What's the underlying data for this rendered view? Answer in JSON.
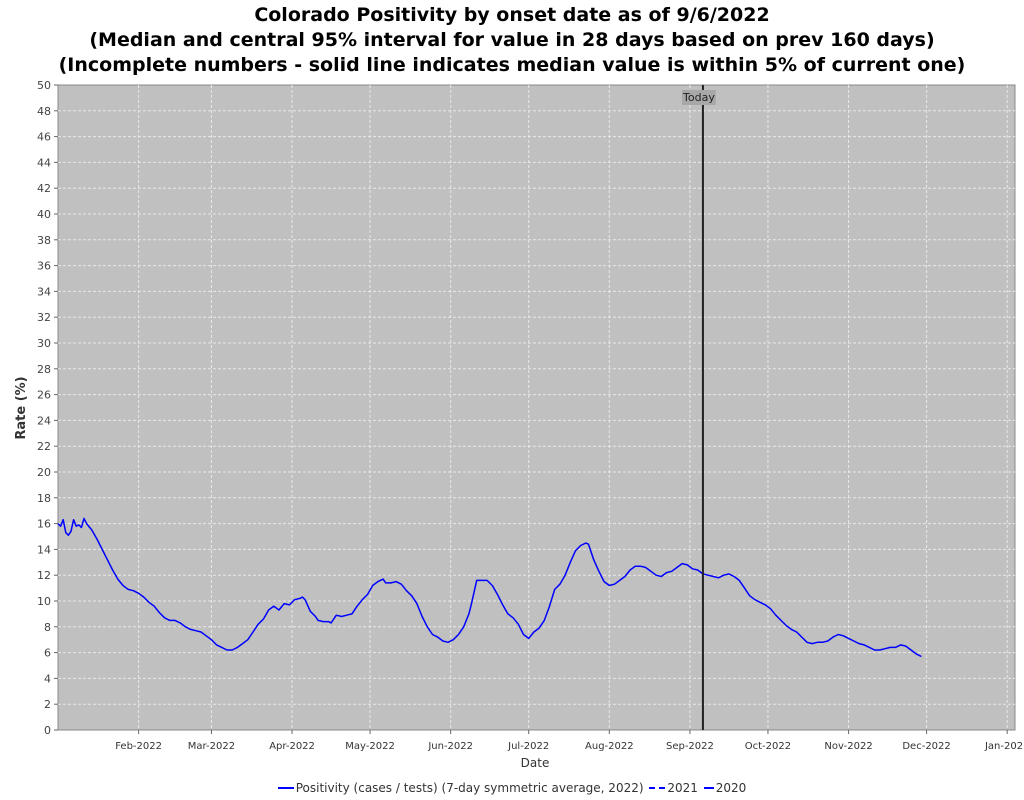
{
  "chart_data": {
    "type": "line",
    "title": "Colorado Positivity by onset date as of 9/6/2022",
    "subtitle": "(Median and central 95% interval for value in 28 days based on prev 160 days)",
    "subtitle2": "(Incomplete numbers - solid line indicates median value is within 5% of current one)",
    "xlabel": "Date",
    "ylabel": "Rate (%)",
    "ylim": [
      0,
      50
    ],
    "xlim": [
      "2022-01-01",
      "2023-01-04"
    ],
    "y_ticks": [
      0,
      2,
      4,
      6,
      8,
      10,
      12,
      14,
      16,
      18,
      20,
      22,
      24,
      26,
      28,
      30,
      32,
      34,
      36,
      38,
      40,
      42,
      44,
      46,
      48,
      50
    ],
    "x_ticks": [
      {
        "date": "2022-02-01",
        "label": "Feb-2022"
      },
      {
        "date": "2022-03-01",
        "label": "Mar-2022"
      },
      {
        "date": "2022-04-01",
        "label": "Apr-2022"
      },
      {
        "date": "2022-05-01",
        "label": "May-2022"
      },
      {
        "date": "2022-06-01",
        "label": "Jun-2022"
      },
      {
        "date": "2022-07-01",
        "label": "Jul-2022"
      },
      {
        "date": "2022-08-01",
        "label": "Aug-2022"
      },
      {
        "date": "2022-09-01",
        "label": "Sep-2022"
      },
      {
        "date": "2022-10-01",
        "label": "Oct-2022"
      },
      {
        "date": "2022-11-01",
        "label": "Nov-2022"
      },
      {
        "date": "2022-12-01",
        "label": "Dec-2022"
      },
      {
        "date": "2023-01-01",
        "label": "Jan-2023"
      }
    ],
    "grid": true,
    "legend_position": "bottom",
    "colors": {
      "series": "#0000ff",
      "plot_background": "#c0c0c0",
      "grid": "#e8e8e8",
      "today_line": "#222222"
    },
    "today": {
      "date": "2022-09-06",
      "label": "Today"
    },
    "series": [
      {
        "name": "Positivity (cases / tests) (7-day symmetric average, 2022)",
        "style": "solid",
        "points": [
          [
            "2022-01-01",
            16.0
          ],
          [
            "2022-01-02",
            15.8
          ],
          [
            "2022-01-03",
            16.3
          ],
          [
            "2022-01-04",
            15.3
          ],
          [
            "2022-01-05",
            15.1
          ],
          [
            "2022-01-06",
            15.4
          ],
          [
            "2022-01-07",
            16.3
          ],
          [
            "2022-01-08",
            15.8
          ],
          [
            "2022-01-09",
            15.9
          ],
          [
            "2022-01-10",
            15.7
          ],
          [
            "2022-01-11",
            16.4
          ],
          [
            "2022-01-12",
            16.0
          ],
          [
            "2022-01-14",
            15.5
          ],
          [
            "2022-01-16",
            14.8
          ],
          [
            "2022-01-18",
            14.0
          ],
          [
            "2022-01-20",
            13.2
          ],
          [
            "2022-01-22",
            12.4
          ],
          [
            "2022-01-24",
            11.7
          ],
          [
            "2022-01-26",
            11.2
          ],
          [
            "2022-01-28",
            10.9
          ],
          [
            "2022-01-30",
            10.8
          ],
          [
            "2022-02-01",
            10.6
          ],
          [
            "2022-02-03",
            10.3
          ],
          [
            "2022-02-05",
            9.9
          ],
          [
            "2022-02-07",
            9.6
          ],
          [
            "2022-02-09",
            9.1
          ],
          [
            "2022-02-11",
            8.7
          ],
          [
            "2022-02-13",
            8.5
          ],
          [
            "2022-02-15",
            8.5
          ],
          [
            "2022-02-17",
            8.3
          ],
          [
            "2022-02-19",
            8.0
          ],
          [
            "2022-02-21",
            7.8
          ],
          [
            "2022-02-23",
            7.7
          ],
          [
            "2022-02-25",
            7.6
          ],
          [
            "2022-02-27",
            7.3
          ],
          [
            "2022-03-01",
            7.0
          ],
          [
            "2022-03-03",
            6.6
          ],
          [
            "2022-03-05",
            6.4
          ],
          [
            "2022-03-07",
            6.2
          ],
          [
            "2022-03-09",
            6.2
          ],
          [
            "2022-03-11",
            6.4
          ],
          [
            "2022-03-13",
            6.7
          ],
          [
            "2022-03-15",
            7.0
          ],
          [
            "2022-03-17",
            7.6
          ],
          [
            "2022-03-19",
            8.2
          ],
          [
            "2022-03-21",
            8.6
          ],
          [
            "2022-03-23",
            9.3
          ],
          [
            "2022-03-25",
            9.6
          ],
          [
            "2022-03-27",
            9.3
          ],
          [
            "2022-03-29",
            9.8
          ],
          [
            "2022-03-31",
            9.7
          ],
          [
            "2022-04-02",
            10.1
          ],
          [
            "2022-04-04",
            10.2
          ],
          [
            "2022-04-05",
            10.3
          ],
          [
            "2022-04-06",
            10.1
          ],
          [
            "2022-04-08",
            9.2
          ],
          [
            "2022-04-10",
            8.8
          ],
          [
            "2022-04-11",
            8.5
          ],
          [
            "2022-04-13",
            8.4
          ],
          [
            "2022-04-15",
            8.4
          ],
          [
            "2022-04-16",
            8.3
          ],
          [
            "2022-04-18",
            8.9
          ],
          [
            "2022-04-20",
            8.8
          ],
          [
            "2022-04-22",
            8.9
          ],
          [
            "2022-04-24",
            9.0
          ],
          [
            "2022-04-26",
            9.6
          ],
          [
            "2022-04-28",
            10.1
          ],
          [
            "2022-04-30",
            10.5
          ],
          [
            "2022-05-02",
            11.2
          ],
          [
            "2022-05-04",
            11.5
          ],
          [
            "2022-05-06",
            11.7
          ],
          [
            "2022-05-07",
            11.4
          ],
          [
            "2022-05-09",
            11.4
          ],
          [
            "2022-05-11",
            11.5
          ],
          [
            "2022-05-13",
            11.3
          ],
          [
            "2022-05-15",
            10.8
          ],
          [
            "2022-05-17",
            10.4
          ],
          [
            "2022-05-19",
            9.8
          ],
          [
            "2022-05-21",
            8.8
          ],
          [
            "2022-05-23",
            8.0
          ],
          [
            "2022-05-25",
            7.4
          ],
          [
            "2022-05-27",
            7.2
          ],
          [
            "2022-05-29",
            6.9
          ],
          [
            "2022-05-31",
            6.8
          ],
          [
            "2022-06-02",
            7.0
          ],
          [
            "2022-06-04",
            7.4
          ],
          [
            "2022-06-06",
            8.0
          ],
          [
            "2022-06-08",
            9.0
          ],
          [
            "2022-06-09",
            9.8
          ],
          [
            "2022-06-11",
            11.6
          ],
          [
            "2022-06-13",
            11.6
          ],
          [
            "2022-06-15",
            11.6
          ],
          [
            "2022-06-17",
            11.2
          ],
          [
            "2022-06-19",
            10.5
          ],
          [
            "2022-06-21",
            9.7
          ],
          [
            "2022-06-23",
            9.0
          ],
          [
            "2022-06-25",
            8.7
          ],
          [
            "2022-06-27",
            8.2
          ],
          [
            "2022-06-29",
            7.4
          ],
          [
            "2022-07-01",
            7.1
          ],
          [
            "2022-07-03",
            7.6
          ],
          [
            "2022-07-05",
            7.9
          ],
          [
            "2022-07-07",
            8.5
          ],
          [
            "2022-07-09",
            9.6
          ],
          [
            "2022-07-11",
            10.9
          ],
          [
            "2022-07-13",
            11.3
          ],
          [
            "2022-07-15",
            12.0
          ],
          [
            "2022-07-17",
            13.0
          ],
          [
            "2022-07-19",
            13.9
          ],
          [
            "2022-07-21",
            14.3
          ],
          [
            "2022-07-23",
            14.5
          ],
          [
            "2022-07-24",
            14.4
          ],
          [
            "2022-07-26",
            13.2
          ],
          [
            "2022-07-28",
            12.3
          ],
          [
            "2022-07-30",
            11.5
          ],
          [
            "2022-08-01",
            11.2
          ],
          [
            "2022-08-03",
            11.3
          ],
          [
            "2022-08-05",
            11.6
          ],
          [
            "2022-08-07",
            11.9
          ],
          [
            "2022-08-09",
            12.4
          ],
          [
            "2022-08-11",
            12.7
          ],
          [
            "2022-08-13",
            12.7
          ],
          [
            "2022-08-15",
            12.6
          ],
          [
            "2022-08-17",
            12.3
          ],
          [
            "2022-08-19",
            12.0
          ],
          [
            "2022-08-21",
            11.9
          ],
          [
            "2022-08-23",
            12.2
          ],
          [
            "2022-08-25",
            12.3
          ],
          [
            "2022-08-27",
            12.6
          ],
          [
            "2022-08-29",
            12.9
          ],
          [
            "2022-08-31",
            12.8
          ],
          [
            "2022-09-02",
            12.5
          ],
          [
            "2022-09-04",
            12.4
          ],
          [
            "2022-09-06",
            12.1
          ],
          [
            "2022-09-08",
            12.0
          ],
          [
            "2022-09-10",
            11.9
          ],
          [
            "2022-09-12",
            11.8
          ],
          [
            "2022-09-14",
            12.0
          ],
          [
            "2022-09-16",
            12.1
          ],
          [
            "2022-09-18",
            11.9
          ],
          [
            "2022-09-20",
            11.6
          ],
          [
            "2022-09-22",
            11.0
          ],
          [
            "2022-09-24",
            10.4
          ],
          [
            "2022-09-26",
            10.1
          ],
          [
            "2022-09-28",
            9.9
          ],
          [
            "2022-09-30",
            9.7
          ],
          [
            "2022-10-02",
            9.4
          ],
          [
            "2022-10-04",
            8.9
          ],
          [
            "2022-10-06",
            8.5
          ],
          [
            "2022-10-08",
            8.1
          ],
          [
            "2022-10-10",
            7.8
          ],
          [
            "2022-10-12",
            7.6
          ],
          [
            "2022-10-14",
            7.2
          ],
          [
            "2022-10-16",
            6.8
          ],
          [
            "2022-10-18",
            6.7
          ],
          [
            "2022-10-20",
            6.8
          ],
          [
            "2022-10-22",
            6.8
          ],
          [
            "2022-10-24",
            6.9
          ],
          [
            "2022-10-26",
            7.2
          ],
          [
            "2022-10-28",
            7.4
          ],
          [
            "2022-10-30",
            7.3
          ],
          [
            "2022-11-01",
            7.1
          ],
          [
            "2022-11-03",
            6.9
          ],
          [
            "2022-11-05",
            6.7
          ],
          [
            "2022-11-07",
            6.6
          ],
          [
            "2022-11-09",
            6.4
          ],
          [
            "2022-11-11",
            6.2
          ],
          [
            "2022-11-13",
            6.2
          ],
          [
            "2022-11-15",
            6.3
          ],
          [
            "2022-11-17",
            6.4
          ],
          [
            "2022-11-19",
            6.4
          ],
          [
            "2022-11-21",
            6.6
          ],
          [
            "2022-11-23",
            6.5
          ],
          [
            "2022-11-25",
            6.2
          ],
          [
            "2022-11-27",
            5.9
          ],
          [
            "2022-11-29",
            5.7
          ]
        ]
      }
    ],
    "legend": [
      {
        "label": "Positivity (cases / tests) (7-day symmetric average, 2022)",
        "style": "solid"
      },
      {
        "label": "2021",
        "style": "dashed"
      },
      {
        "label": "2020",
        "style": "dashed"
      }
    ]
  }
}
